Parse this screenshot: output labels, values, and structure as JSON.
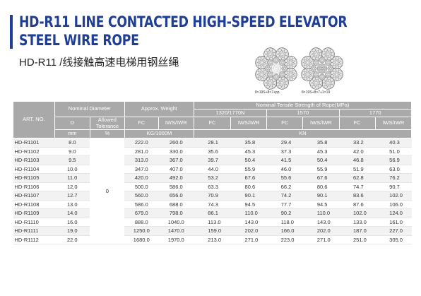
{
  "header": {
    "title_line1": "HD-R11 LINE CONTACTED HIGH-SPEED ELEVATOR",
    "title_line2": "STEEL WIRE ROPE",
    "subtitle": "HD-R11 /线接触高速电梯用钢丝绳"
  },
  "diagrams": [
    {
      "caption": "8×19S+8×7+pp"
    },
    {
      "caption": "8×19S+8×7+1×19"
    }
  ],
  "table": {
    "headers": {
      "art_no": "ART. NO.",
      "nominal_diameter": "Nominal Diameter",
      "approx_weight": "Approx. Weight",
      "tensile": "Nominal Tensile Strength of Rope(MPa)",
      "grade_1": "1320/1770N",
      "grade_2": "1570",
      "grade_3": "1770",
      "breaking": "Miniumu Breaking of Rope",
      "d": "D",
      "allowed_tolerance": "Allowed Tolerance",
      "fc": "FC",
      "iws": "IWS/IWR"
    },
    "units": {
      "mm": "mm",
      "pct": "%",
      "weight": "KG/1000M",
      "kn": "KN"
    },
    "tolerance": "0",
    "rows": [
      [
        "HD-R1101",
        "8.0",
        "222.0",
        "260.0",
        "28.1",
        "35.8",
        "29.4",
        "35.8",
        "33.2",
        "40.3"
      ],
      [
        "HD-R1102",
        "9.0",
        "281.0",
        "330.0",
        "35.6",
        "45.3",
        "37.3",
        "45.3",
        "42.0",
        "51.0"
      ],
      [
        "HD-R1103",
        "9.5",
        "313.0",
        "367.0",
        "39.7",
        "50.4",
        "41.5",
        "50.4",
        "46.8",
        "56.9"
      ],
      [
        "HD-R1104",
        "10.0",
        "347.0",
        "407.0",
        "44.0",
        "55.9",
        "46.0",
        "55.9",
        "51.9",
        "63.0"
      ],
      [
        "HD-R1105",
        "11.0",
        "420.0",
        "492.0",
        "53.2",
        "67.6",
        "55.6",
        "67.6",
        "62.8",
        "76.2"
      ],
      [
        "HD-R1106",
        "12.0",
        "500.0",
        "586.0",
        "63.3",
        "80.6",
        "66.2",
        "80.6",
        "74.7",
        "90.7"
      ],
      [
        "HD-R1107",
        "12.7",
        "560.0",
        "656.0",
        "70.9",
        "90.1",
        "74.2",
        "90.1",
        "83.6",
        "102.0"
      ],
      [
        "HD-R1108",
        "13.0",
        "586.0",
        "688.0",
        "74.3",
        "94.5",
        "77.7",
        "94.5",
        "87.6",
        "106.0"
      ],
      [
        "HD-R1109",
        "14.0",
        "679.0",
        "798.0",
        "86.1",
        "110.0",
        "90.2",
        "110.0",
        "102.0",
        "124.0"
      ],
      [
        "HD-R1110",
        "16.0",
        "888.0",
        "1040.0",
        "113.0",
        "143.0",
        "118.0",
        "143.0",
        "133.0",
        "161.0"
      ],
      [
        "HD-R1111",
        "19.0",
        "1250.0",
        "1470.0",
        "159.0",
        "202.0",
        "166.0",
        "202.0",
        "187.0",
        "227.0"
      ],
      [
        "HD-R1112",
        "22.0",
        "1680.0",
        "1970.0",
        "213.0",
        "271.0",
        "223.0",
        "271.0",
        "251.0",
        "305.0"
      ]
    ]
  },
  "colors": {
    "brand_blue": "#1f3f96",
    "header_gray": "#a9a9a9",
    "stripe": "#f2f2f2"
  }
}
